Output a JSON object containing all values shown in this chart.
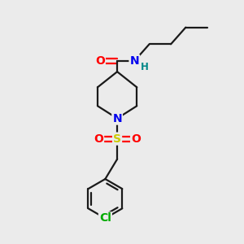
{
  "bg_color": "#ebebeb",
  "bond_color": "#1a1a1a",
  "atom_colors": {
    "O": "#ff0000",
    "N": "#0000ee",
    "S": "#cccc00",
    "Cl": "#00aa00",
    "H": "#008888",
    "C": "#1a1a1a"
  },
  "bond_width": 1.6,
  "font_size": 9.5,
  "fig_size": [
    3.0,
    3.0
  ],
  "dpi": 100,
  "xlim": [
    0,
    10
  ],
  "ylim": [
    0,
    10
  ]
}
